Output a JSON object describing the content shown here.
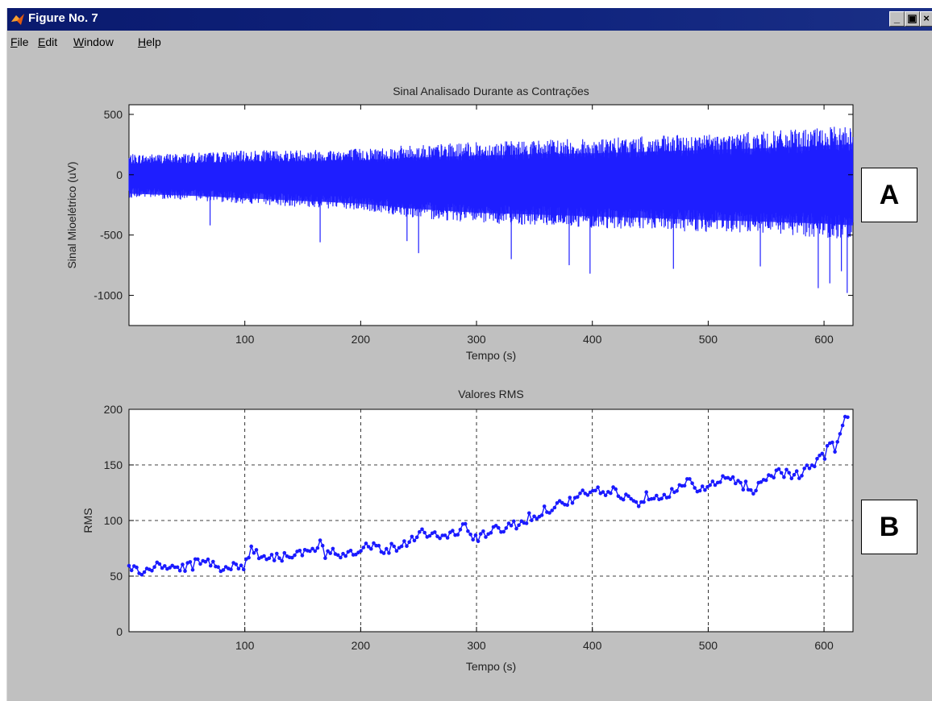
{
  "window": {
    "title": "Figure No. 7",
    "menu": [
      {
        "underline": "F",
        "rest": "ile"
      },
      {
        "underline": "E",
        "rest": "dit"
      },
      {
        "underline": "W",
        "rest": "indow"
      },
      {
        "underline": "H",
        "rest": "elp"
      }
    ],
    "controls": {
      "minimize": "_",
      "maximize": "▣",
      "close": "×"
    }
  },
  "panel_labels": {
    "a": "A",
    "b": "B"
  },
  "colors": {
    "signal": "#1f1fff",
    "rms": "#1a1aff",
    "grid": "#000000",
    "window_bg": "#c0c0c0",
    "titlebar": "#10247e"
  },
  "chart_data": [
    {
      "type": "line",
      "title": "Sinal Analisado Durante as Contrações",
      "xlabel": "Tempo (s)",
      "ylabel": "Sinal Mioelétrico (uV)",
      "xlim": [
        0,
        625
      ],
      "ylim": [
        -1250,
        580
      ],
      "xticks": [
        100,
        200,
        300,
        400,
        500,
        600
      ],
      "yticks": [
        500,
        0,
        -500,
        -1000
      ],
      "ytick_labels": [
        "500",
        "0",
        "-500",
        "-1000"
      ],
      "grid": false,
      "envelope": {
        "x": [
          0,
          50,
          100,
          150,
          200,
          250,
          300,
          350,
          400,
          450,
          500,
          550,
          600,
          625
        ],
        "upper": [
          110,
          120,
          140,
          150,
          160,
          190,
          210,
          230,
          240,
          260,
          280,
          300,
          330,
          350
        ],
        "lower": [
          -250,
          -270,
          -300,
          -330,
          -360,
          -420,
          -460,
          -480,
          -500,
          -520,
          -540,
          -560,
          -580,
          -600
        ]
      },
      "peaks": {
        "x": [
          70,
          165,
          240,
          250,
          330,
          380,
          398,
          470,
          545,
          595,
          605,
          615,
          620
        ],
        "y": [
          -420,
          -560,
          -550,
          -650,
          -700,
          -750,
          -820,
          -780,
          -760,
          -940,
          -900,
          -800,
          -980
        ]
      }
    },
    {
      "type": "line",
      "title": "Valores RMS",
      "xlabel": "Tempo (s)",
      "ylabel": "RMS",
      "xlim": [
        0,
        625
      ],
      "ylim": [
        0,
        200
      ],
      "xticks": [
        100,
        200,
        300,
        400,
        500,
        600
      ],
      "yticks": [
        0,
        50,
        100,
        150,
        200
      ],
      "grid": true,
      "series": [
        {
          "x": [
            0,
            10,
            20,
            30,
            40,
            50,
            60,
            70,
            80,
            90,
            100,
            105,
            110,
            120,
            130,
            140,
            150,
            160,
            165,
            170,
            175,
            180,
            190,
            200,
            210,
            220,
            230,
            240,
            250,
            260,
            270,
            280,
            290,
            300,
            310,
            320,
            330,
            340,
            350,
            360,
            370,
            380,
            390,
            400,
            410,
            420,
            430,
            440,
            450,
            460,
            470,
            480,
            485,
            490,
            500,
            510,
            520,
            530,
            540,
            550,
            560,
            570,
            580,
            590,
            600,
            605,
            610,
            615,
            620,
            622
          ],
          "y": [
            59,
            53,
            57,
            60,
            57,
            58,
            62,
            64,
            57,
            58,
            60,
            75,
            70,
            68,
            67,
            70,
            70,
            72,
            80,
            65,
            75,
            70,
            72,
            75,
            78,
            74,
            76,
            80,
            90,
            88,
            85,
            88,
            95,
            82,
            90,
            92,
            95,
            100,
            104,
            110,
            114,
            118,
            122,
            128,
            124,
            127,
            120,
            117,
            124,
            122,
            126,
            130,
            142,
            125,
            130,
            135,
            138,
            132,
            128,
            138,
            145,
            142,
            140,
            150,
            158,
            172,
            165,
            178,
            200,
            180
          ]
        }
      ]
    }
  ]
}
